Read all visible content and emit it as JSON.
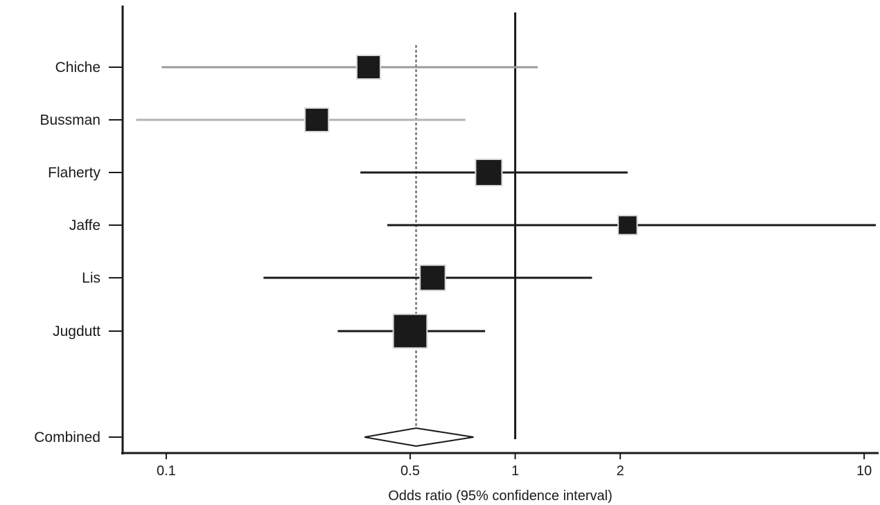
{
  "chart_data": {
    "type": "forest",
    "xlabel": "Odds ratio (95% confidence interval)",
    "x_scale": "log",
    "xlim": [
      0.075,
      11
    ],
    "x_ticks": [
      {
        "value": 0.1,
        "label": "0.1"
      },
      {
        "value": 0.5,
        "label": "0.5"
      },
      {
        "value": 1,
        "label": "1"
      },
      {
        "value": 2,
        "label": "2"
      },
      {
        "value": 10,
        "label": "10"
      }
    ],
    "reference_line": 1,
    "pooled_reference_line": 0.52,
    "studies": [
      {
        "name": "Chiche",
        "or": 0.38,
        "lower": 0.097,
        "upper": 1.16,
        "weight": 1.0,
        "ci_color": "#9a9a9a"
      },
      {
        "name": "Bussman",
        "or": 0.27,
        "lower": 0.082,
        "upper": 0.72,
        "weight": 1.0,
        "ci_color": "#b3b3b3"
      },
      {
        "name": "Flaherty",
        "or": 0.84,
        "lower": 0.36,
        "upper": 2.1,
        "weight": 1.25,
        "ci_color": "#1a1a1a"
      },
      {
        "name": "Jaffe",
        "or": 2.1,
        "lower": 0.43,
        "upper": 10.8,
        "weight": 0.65,
        "ci_color": "#1a1a1a"
      },
      {
        "name": "Lis",
        "or": 0.58,
        "lower": 0.19,
        "upper": 1.66,
        "weight": 1.15,
        "ci_color": "#1a1a1a"
      },
      {
        "name": "Jugdutt",
        "or": 0.5,
        "lower": 0.31,
        "upper": 0.82,
        "weight": 2.05,
        "ci_color": "#1a1a1a"
      }
    ],
    "combined": {
      "name": "Combined",
      "or": 0.52,
      "lower": 0.37,
      "upper": 0.76
    }
  }
}
